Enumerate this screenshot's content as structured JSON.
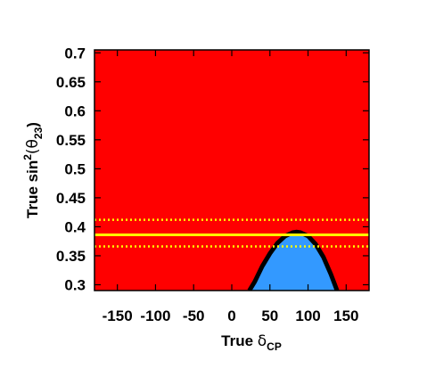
{
  "chart_data": {
    "type": "area",
    "xlabel": "True δCP",
    "xlabel_parts": {
      "prefix": "True ",
      "symbol": "δ",
      "subscript": "CP"
    },
    "ylabel": "True sin2(θ23)",
    "ylabel_parts": {
      "prefix": "True sin",
      "superscript": "2",
      "open": "(θ",
      "subscript": "23",
      "close": ")"
    },
    "xlim": [
      -180,
      180
    ],
    "ylim": [
      0.29,
      0.705
    ],
    "xticks": [
      -150,
      -100,
      -50,
      0,
      50,
      100,
      150
    ],
    "xtick_labels": [
      "-150",
      "-100",
      "-50",
      "0",
      "50",
      "100",
      "150"
    ],
    "yticks": [
      0.3,
      0.35,
      0.4,
      0.45,
      0.5,
      0.55,
      0.6,
      0.65,
      0.7
    ],
    "ytick_labels": [
      "0.3",
      "0.35",
      "0.4",
      "0.45",
      "0.5",
      "0.55",
      "0.6",
      "0.65",
      "0.7"
    ],
    "grid": false,
    "legend": "none",
    "colors": {
      "background_region": "#ff0000",
      "inner_region": "#3399ff",
      "contour": "#000000",
      "reference_line": "#ffff00",
      "reference_band": "#ffff00"
    },
    "regions": [
      {
        "name": "inner",
        "boundary_x": [
          23,
          30,
          40,
          50,
          60,
          70,
          80,
          85,
          90,
          100,
          110,
          120,
          130,
          138
        ],
        "boundary_y": [
          0.29,
          0.305,
          0.332,
          0.354,
          0.372,
          0.384,
          0.39,
          0.391,
          0.39,
          0.384,
          0.37,
          0.348,
          0.318,
          0.29
        ]
      }
    ],
    "horizontal_lines": [
      {
        "y": 0.386,
        "style": "solid"
      },
      {
        "y": 0.412,
        "style": "dotted"
      },
      {
        "y": 0.366,
        "style": "dotted"
      }
    ]
  }
}
